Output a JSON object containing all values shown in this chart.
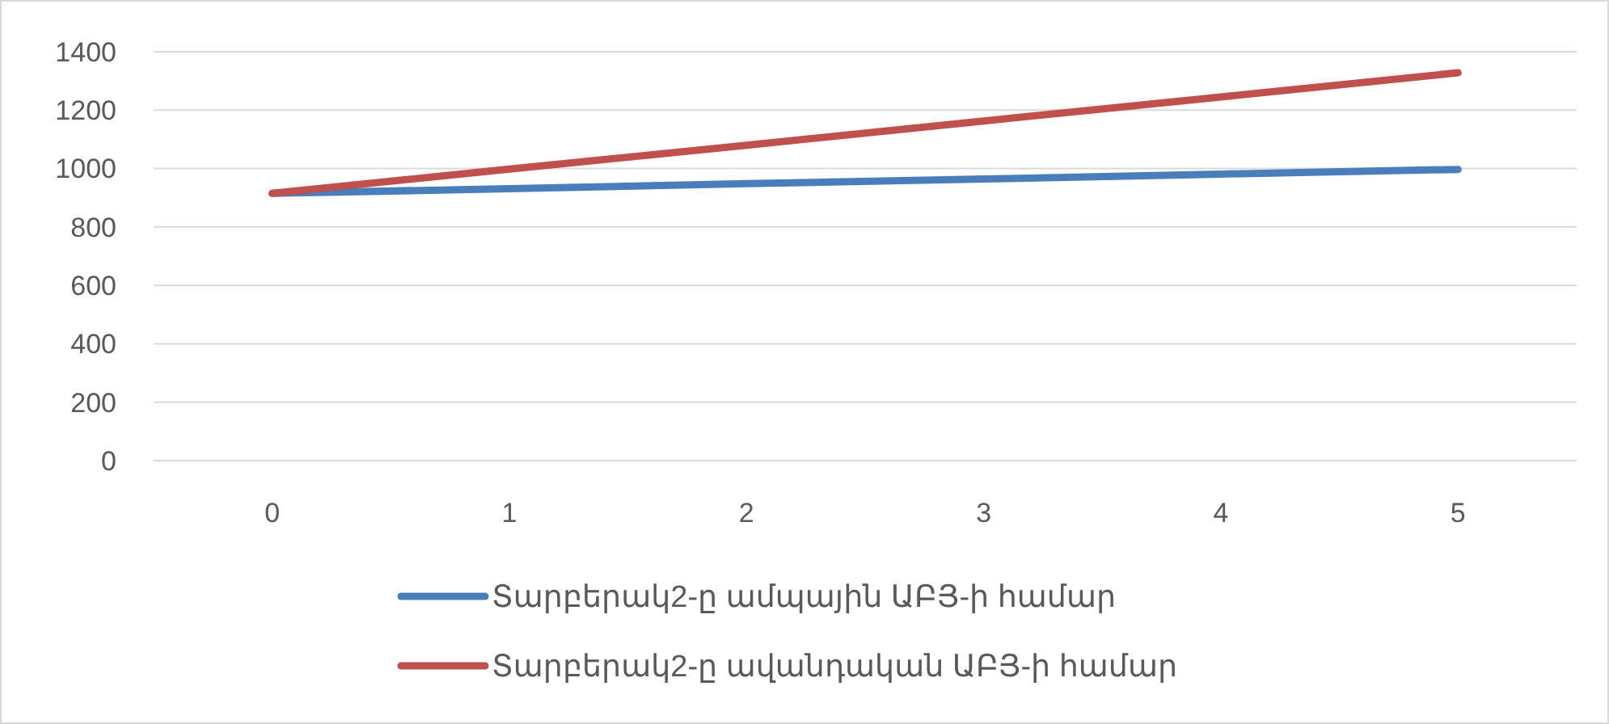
{
  "chart_data": {
    "type": "line",
    "categories": [
      "0",
      "1",
      "2",
      "3",
      "4",
      "5"
    ],
    "series": [
      {
        "name": "Տարբերակ2-ը ամպային ԱԲՅ-ի համար",
        "color": "#4a7ebb",
        "values": [
          915,
          931,
          948,
          964,
          981,
          997
        ]
      },
      {
        "name": "Տարբերակ2-ը ավանդական ԱԲՅ-ի համար",
        "color": "#c0504d",
        "values": [
          915,
          998,
          1080,
          1163,
          1245,
          1328
        ]
      }
    ],
    "ylim": [
      0,
      1400
    ],
    "yticks": [
      0,
      200,
      400,
      600,
      800,
      1000,
      1200,
      1400
    ],
    "grid": "y",
    "legend": "bottom",
    "marker": "none",
    "line_style": "solid"
  }
}
